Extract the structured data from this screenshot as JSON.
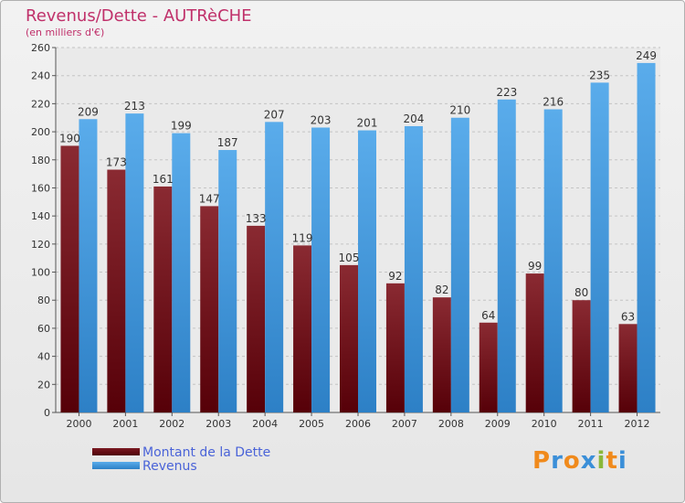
{
  "title": "Revenus/Dette - AUTRèCHE",
  "subtitle": "(en milliers d'€)",
  "colors": {
    "dette": "#6b1016",
    "revenus": "#3a8fd4",
    "title": "#c0306a",
    "legend_text": "#4a63d8"
  },
  "legend": {
    "dette": "Montant de la Dette",
    "revenus": "Revenus"
  },
  "logo": {
    "text": "Proxiti",
    "letters": [
      "P",
      "r",
      "o",
      "x",
      "i",
      "t",
      "i"
    ],
    "colors": [
      "#f08a1c",
      "#3b8fd8",
      "#f08a1c",
      "#3b8fd8",
      "#8ab83a",
      "#f08a1c",
      "#3b8fd8"
    ]
  },
  "chart_data": {
    "type": "bar",
    "title": "Revenus/Dette - AUTRèCHE",
    "subtitle": "(en milliers d'€)",
    "categories": [
      "2000",
      "2001",
      "2002",
      "2003",
      "2004",
      "2005",
      "2006",
      "2007",
      "2008",
      "2009",
      "2010",
      "2011",
      "2012"
    ],
    "series": [
      {
        "name": "Montant de la Dette",
        "values": [
          190,
          173,
          161,
          147,
          133,
          119,
          105,
          92,
          82,
          64,
          99,
          80,
          63
        ]
      },
      {
        "name": "Revenus",
        "values": [
          209,
          213,
          199,
          187,
          207,
          203,
          201,
          204,
          210,
          223,
          216,
          235,
          249
        ]
      }
    ],
    "ylim": [
      0,
      260
    ],
    "yticks": [
      0,
      20,
      40,
      60,
      80,
      100,
      120,
      140,
      160,
      180,
      200,
      220,
      240,
      260
    ],
    "grid": true,
    "legend_position": "bottom-left"
  }
}
